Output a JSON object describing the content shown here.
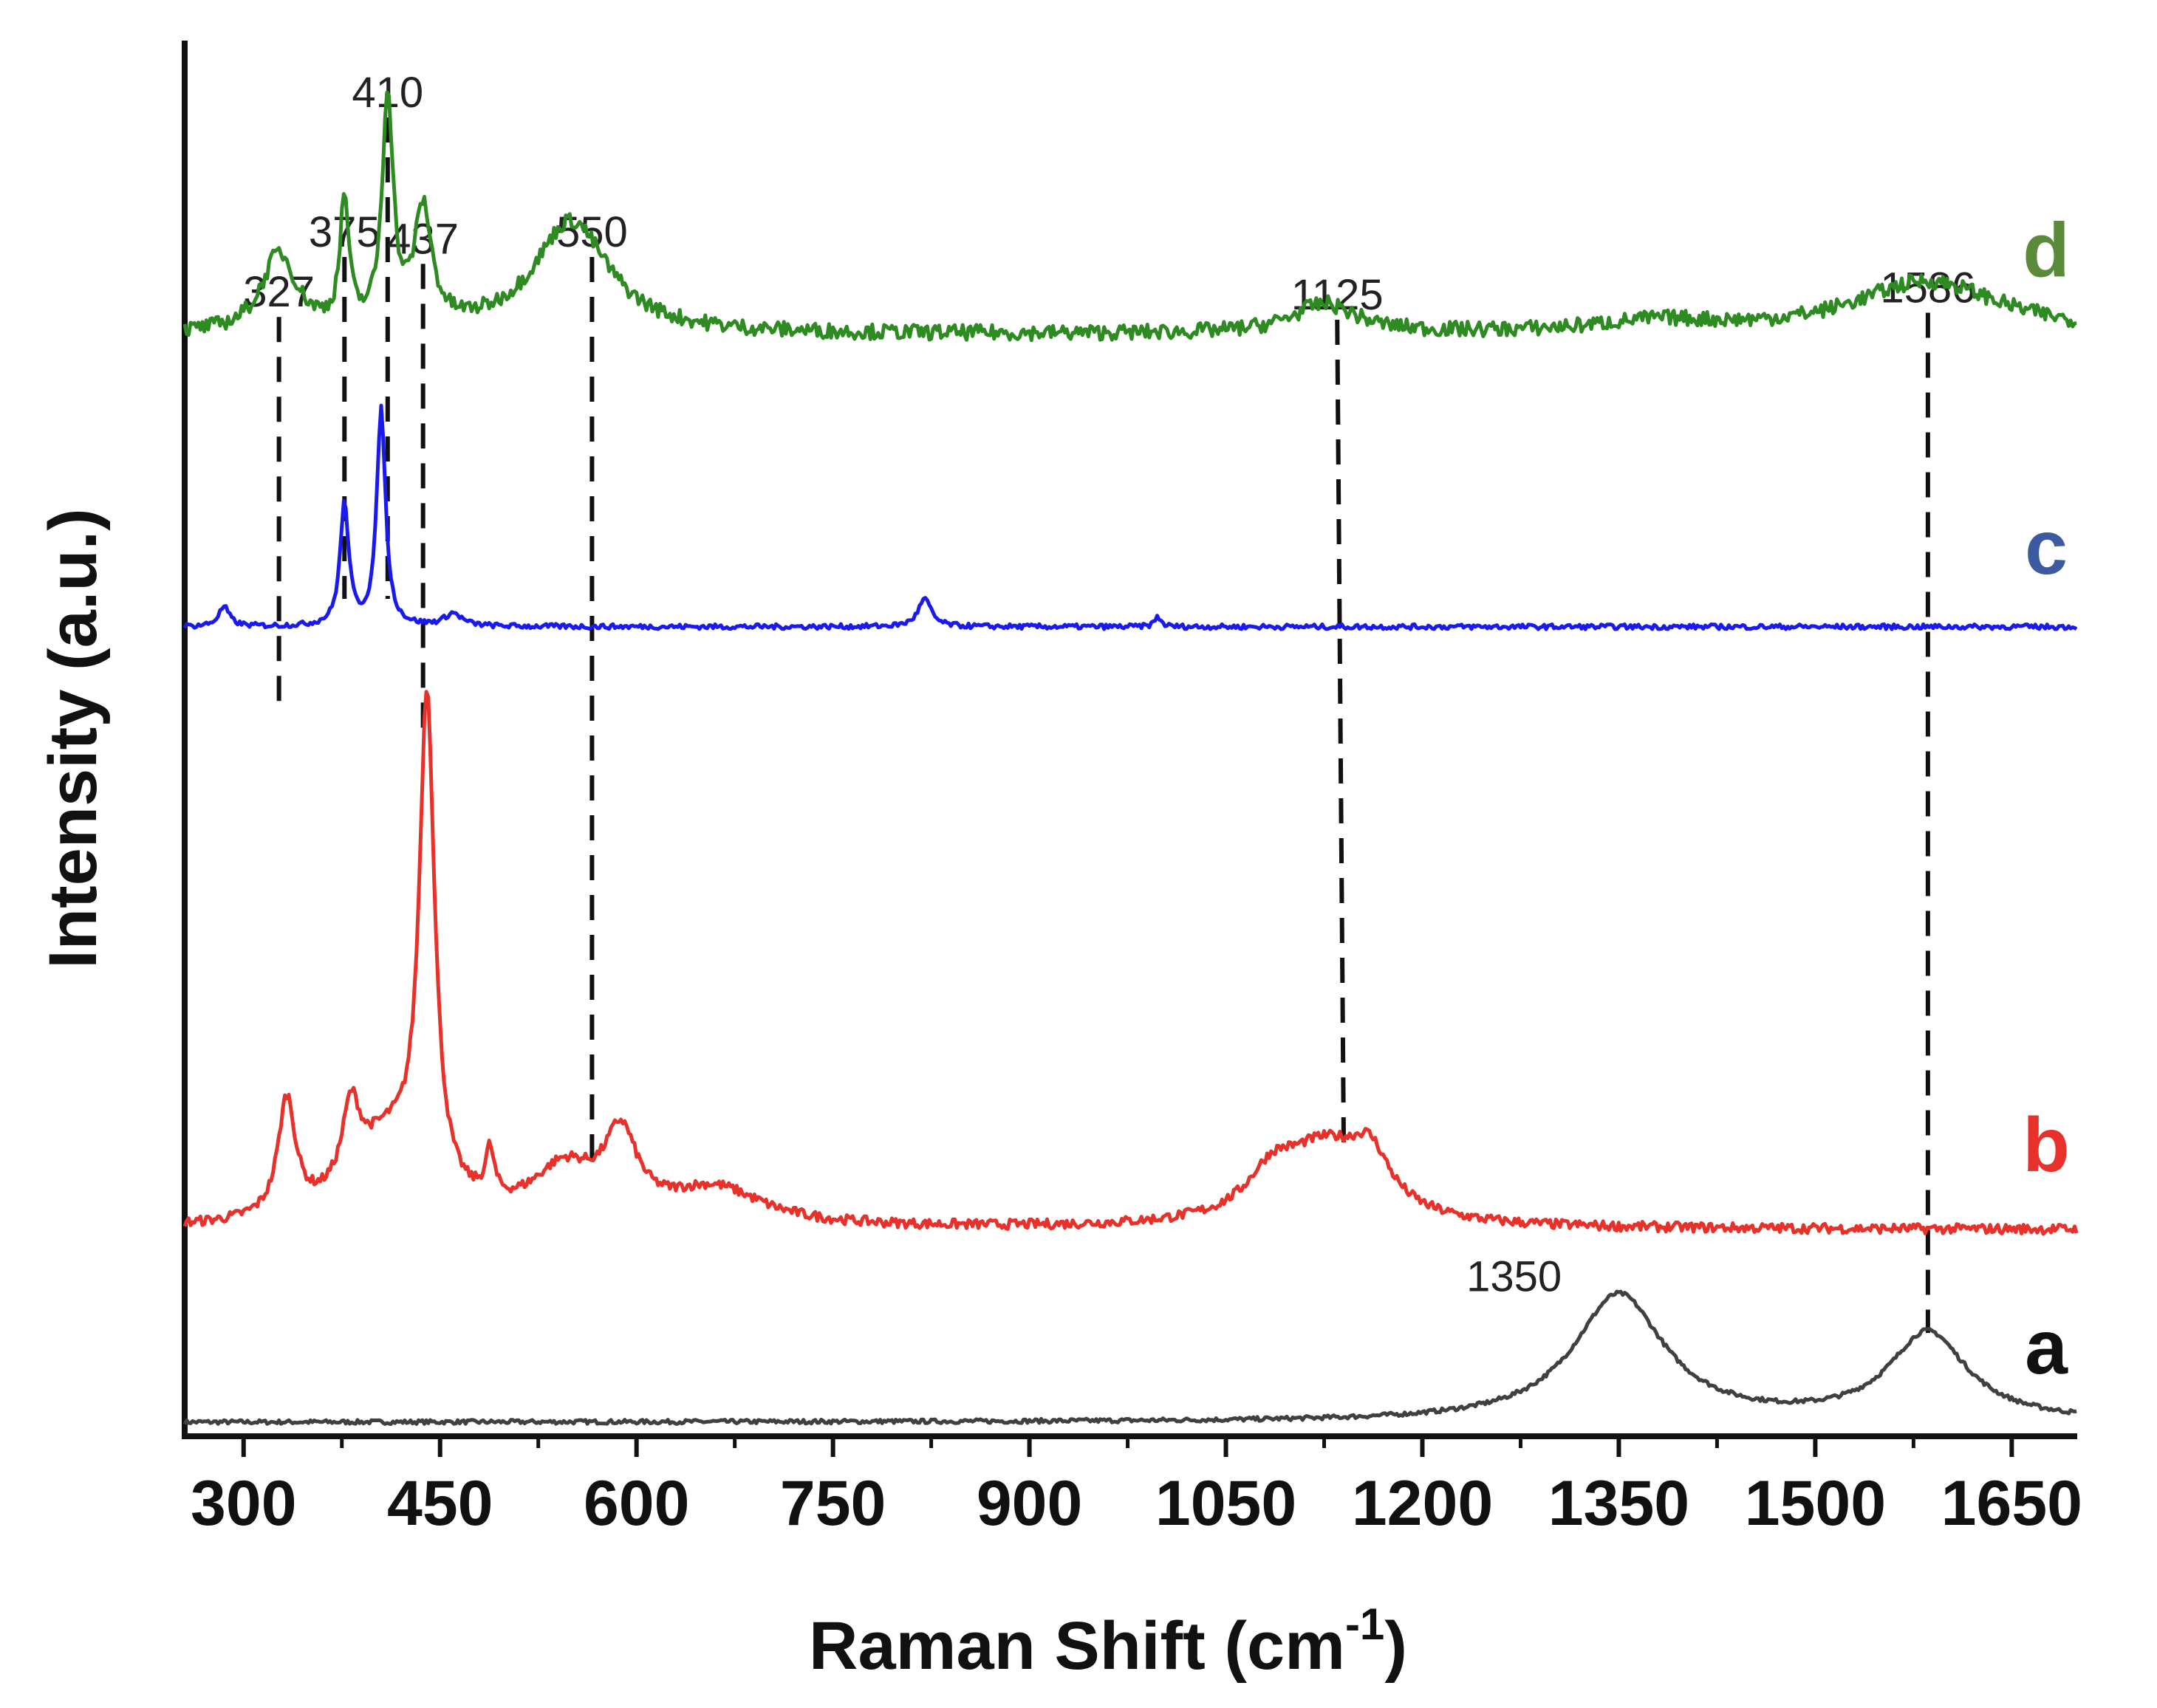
{
  "chart_data": {
    "type": "line",
    "xlabel": "Raman Shift (cm",
    "xlabel_sup": "-1",
    "xlabel_close": ")",
    "ylabel": "Intensity (a.u.)",
    "xlim": [
      255,
      1700
    ],
    "ylim": [
      0,
      100
    ],
    "xticks": [
      300,
      450,
      600,
      750,
      900,
      1050,
      1200,
      1350,
      1500,
      1650
    ],
    "series": [
      {
        "name": "a",
        "color": "#404040",
        "label_color": "#111111",
        "baseline": 1.0,
        "peaks": [
          [
            1350,
            9.1,
            42
          ],
          [
            1586,
            6.3,
            36
          ]
        ],
        "noise": 0.15
      },
      {
        "name": "b",
        "color": "#e8312a",
        "label_color": "#e8312a",
        "baseline": 14.8,
        "peaks": [
          [
            333,
            8.3,
            8
          ],
          [
            382,
            5.5,
            8
          ],
          [
            410,
            5.8,
            35
          ],
          [
            440,
            35,
            7
          ],
          [
            488,
            3.3,
            4
          ],
          [
            545,
            3.7,
            30
          ],
          [
            588,
            5.6,
            15
          ],
          [
            660,
            2.6,
            45
          ],
          [
            1085,
            2.5,
            22
          ],
          [
            1125,
            5.4,
            42
          ],
          [
            1160,
            3.4,
            18
          ]
        ],
        "noise": 0.35
      },
      {
        "name": "c",
        "color": "#1a1aee",
        "label_color": "#3c5aa0",
        "baseline": 58.0,
        "peaks": [
          [
            285,
            1.4,
            5
          ],
          [
            377,
            8.7,
            4
          ],
          [
            405,
            15.5,
            4
          ],
          [
            460,
            0.9,
            8
          ],
          [
            820,
            2.0,
            6
          ],
          [
            998,
            0.7,
            3
          ]
        ],
        "noise": 0.18
      },
      {
        "name": "d",
        "color": "#2e8b22",
        "label_color": "#5a8a3a",
        "baseline": 78.9,
        "peaks": [
          [
            327,
            5.6,
            16
          ],
          [
            377,
            9.0,
            4
          ],
          [
            410,
            16.5,
            5
          ],
          [
            437,
            8.3,
            8
          ],
          [
            550,
            8.1,
            35
          ],
          [
            1125,
            2.1,
            30
          ],
          [
            1586,
            3.8,
            70
          ],
          [
            1380,
            0.8,
            60
          ]
        ],
        "noise": 0.55
      }
    ],
    "peak_markers": [
      {
        "label": "327",
        "x_top": 327,
        "x_bottom": 327,
        "top": 80.2,
        "bottom": 51.7
      },
      {
        "label": "375",
        "x_top": 377,
        "x_bottom": 377,
        "top": 84.5,
        "bottom": 60.0
      },
      {
        "label": "410",
        "x_top": 410,
        "x_bottom": 410,
        "top": 94.5,
        "bottom": 60.0
      },
      {
        "label": "437",
        "x_top": 437,
        "x_bottom": 437,
        "top": 84.0,
        "bottom": 50.3
      },
      {
        "label": "550",
        "x_top": 566,
        "x_bottom": 566,
        "top": 84.5,
        "bottom": 18.8
      },
      {
        "label": "1125",
        "x_top": 1135,
        "x_bottom": 1140,
        "top": 80.0,
        "bottom": 20.5
      },
      {
        "label": "1586",
        "x_top": 1586,
        "x_bottom": 1586,
        "top": 80.5,
        "bottom": 7.4
      }
    ],
    "annotations": [
      {
        "label": "1350",
        "x": 1270,
        "y": 10.4
      }
    ]
  }
}
